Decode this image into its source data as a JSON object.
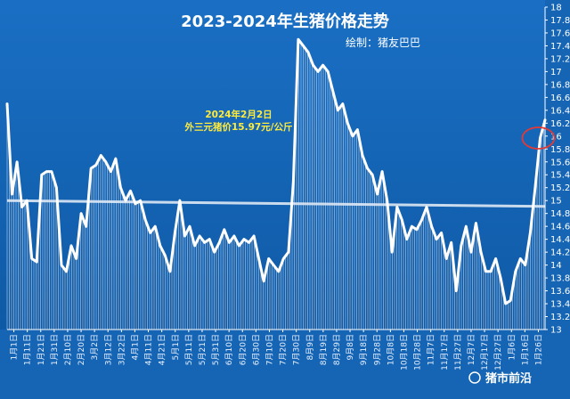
{
  "chart_data": {
    "type": "line",
    "title": "2023-2024年生猪价格走势",
    "subtitle": "绘制：猪友巴巴",
    "annotation_lines": [
      "2024年2月2日",
      "外三元猪价15.97元/公斤"
    ],
    "watermark": "猪市前沿",
    "ylim": [
      13,
      18
    ],
    "yticks": [
      13,
      13.2,
      13.4,
      13.6,
      13.8,
      14,
      14.2,
      14.4,
      14.6,
      14.8,
      15,
      15.2,
      15.4,
      15.6,
      15.8,
      16,
      16.2,
      16.4,
      16.6,
      16.8,
      17,
      17.2,
      17.4,
      17.6,
      17.8,
      18
    ],
    "ytick_labels": [
      "13",
      "13.2",
      "13.4",
      "13.6",
      "13.8",
      "14",
      "14.2",
      "14.4",
      "14.6",
      "14.8",
      "15",
      "15.2",
      "15.4",
      "15.6",
      "15.8",
      "16",
      "16.2",
      "16.4",
      "16.6",
      "16.8",
      "17",
      "17.2",
      "17.4",
      "17.6",
      "17.8",
      "18"
    ],
    "x_labels": [
      "1月1日",
      "1月11日",
      "1月21日",
      "1月31日",
      "2月10日",
      "2月20日",
      "3月2日",
      "3月12日",
      "3月22日",
      "4月1日",
      "4月11日",
      "4月21日",
      "5月1日",
      "5月11日",
      "5月21日",
      "5月31日",
      "6月10日",
      "6月20日",
      "6月30日",
      "7月10日",
      "7月20日",
      "7月30日",
      "8月9日",
      "8月19日",
      "8月29日",
      "9月8日",
      "9月18日",
      "9月28日",
      "10月8日",
      "10月18日",
      "10月28日",
      "11月7日",
      "11月17日",
      "11月27日",
      "12月7日",
      "12月17日",
      "12月27日",
      "1月6日",
      "1月16日",
      "1月26日"
    ],
    "series": [
      {
        "values": [
          16.5,
          15.1,
          15.6,
          14.9,
          15.0,
          14.1,
          14.05,
          15.4,
          15.45,
          15.45,
          15.2,
          14.0,
          13.9,
          14.3,
          14.1,
          14.8,
          14.6,
          15.5,
          15.55,
          15.7,
          15.6,
          15.45,
          15.65,
          15.2,
          15.0,
          15.15,
          14.95,
          15.0,
          14.7,
          14.5,
          14.6,
          14.3,
          14.15,
          13.9,
          14.5,
          15.0,
          14.45,
          14.6,
          14.3,
          14.45,
          14.35,
          14.4,
          14.2,
          14.35,
          14.55,
          14.35,
          14.45,
          14.3,
          14.4,
          14.35,
          14.45,
          14.1,
          13.75,
          14.1,
          14.0,
          13.9,
          14.1,
          14.2,
          15.3,
          17.5,
          17.4,
          17.3,
          17.1,
          17.0,
          17.1,
          17.0,
          16.7,
          16.4,
          16.5,
          16.2,
          16.0,
          16.1,
          15.7,
          15.5,
          15.4,
          15.1,
          15.45,
          15.0,
          14.2,
          14.9,
          14.7,
          14.4,
          14.6,
          14.55,
          14.7,
          14.9,
          14.6,
          14.4,
          14.5,
          14.1,
          14.35,
          13.6,
          14.3,
          14.6,
          14.2,
          14.65,
          14.2,
          13.9,
          13.9,
          14.1,
          13.8,
          13.4,
          13.45,
          13.9,
          14.1,
          14.0,
          14.5,
          15.2,
          15.97,
          16.25
        ]
      },
      {
        "name": "trend",
        "values": [
          15.0,
          14.91
        ]
      }
    ],
    "highlight": {
      "index": 108,
      "value": 15.97
    },
    "grid": false,
    "colors": {
      "background": "#1565b4",
      "line": "#ffffff",
      "area_stripes": "#ffffff",
      "trend_line": "#dfe9f5",
      "title": "#ffffff",
      "annotation": "#ffeb3b",
      "highlight_circle": "#e53935"
    }
  }
}
